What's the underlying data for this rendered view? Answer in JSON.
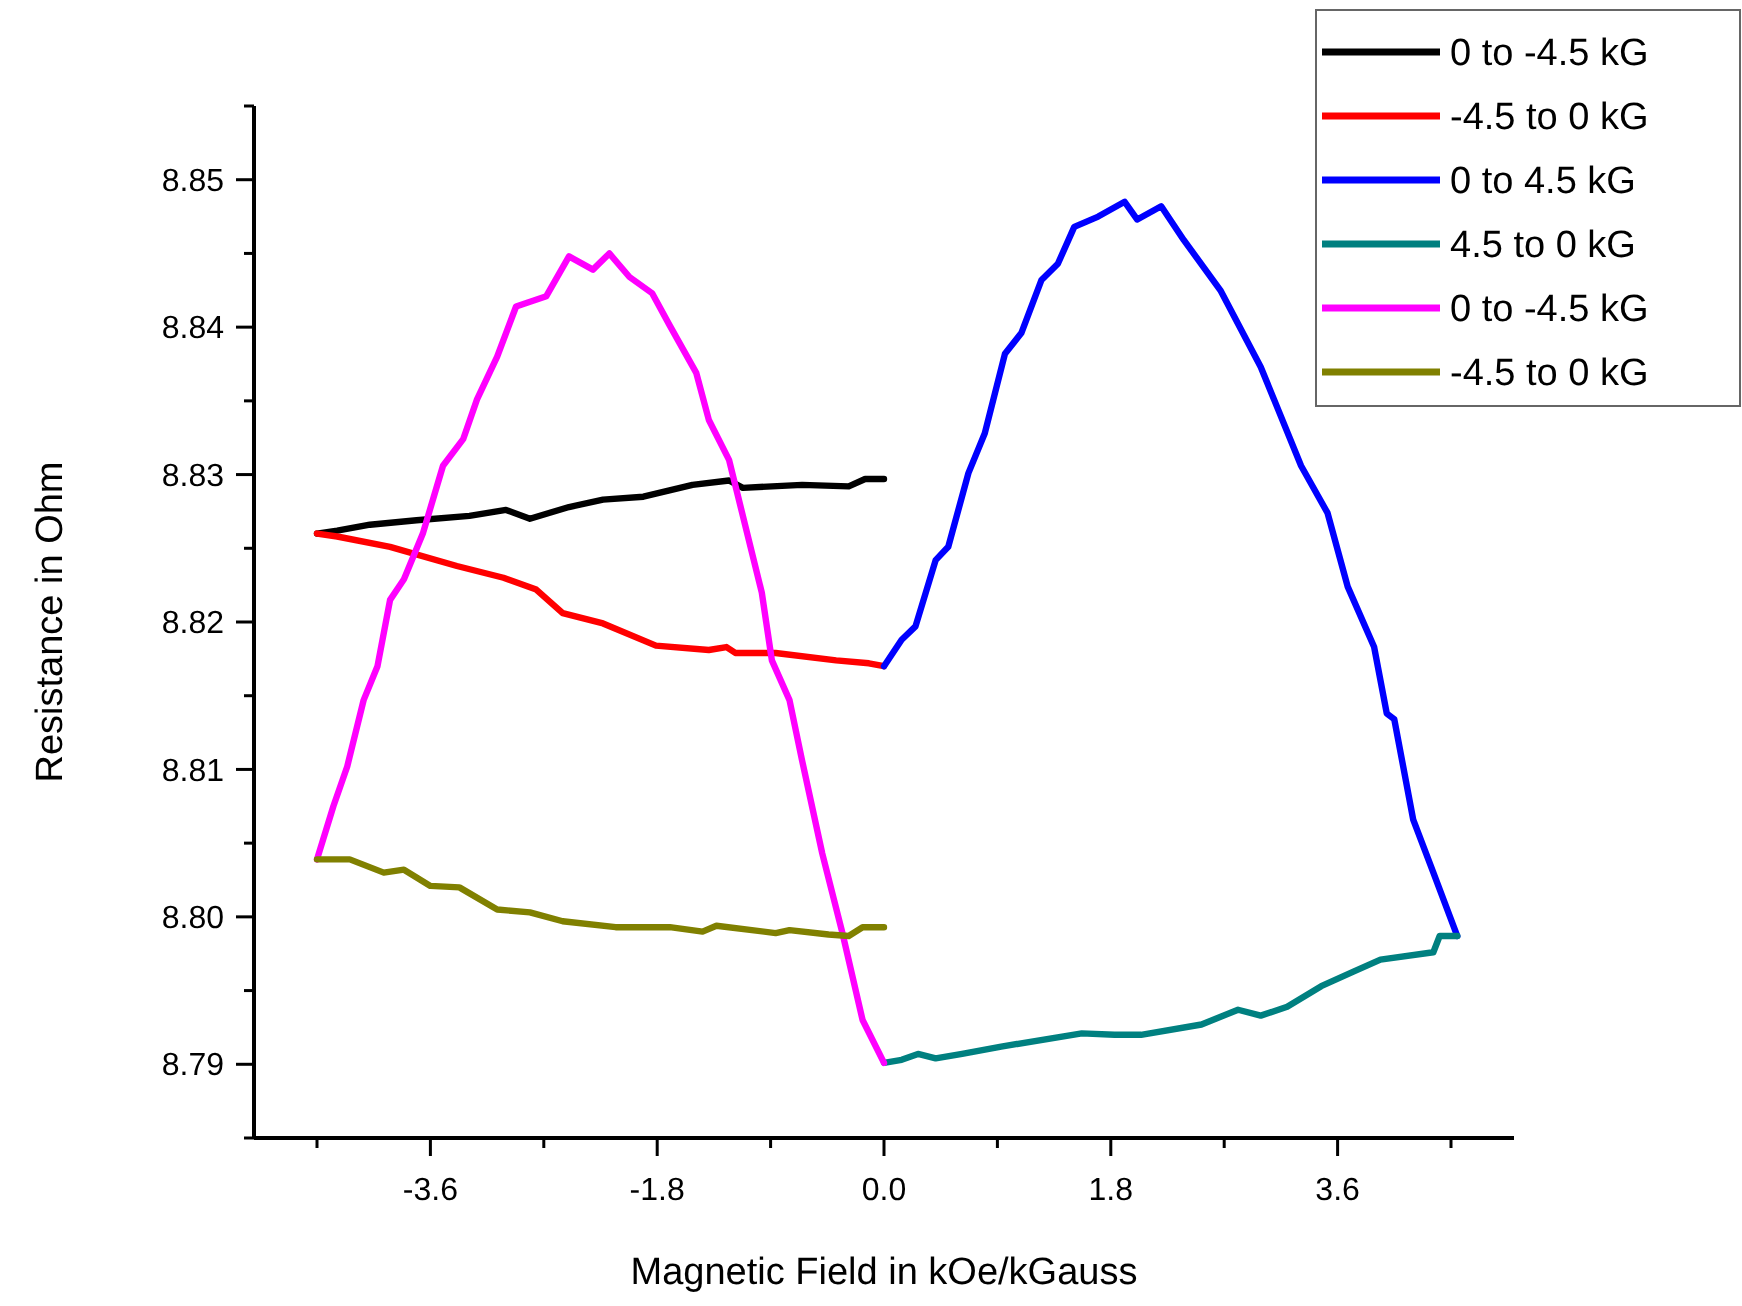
{
  "chart_data": {
    "type": "line",
    "xlabel": "Magnetic Field in kOe/kGauss",
    "ylabel": "Resistance in Ohm",
    "xlim": [
      -5,
      5
    ],
    "xticks": [
      {
        "value": -4.5,
        "label": null
      },
      -3.6,
      {
        "value": -2.7,
        "label": null
      },
      -1.8,
      {
        "value": -0.9,
        "label": null
      },
      {
        "value": 0,
        "label": "0.0"
      },
      {
        "value": 0.9,
        "label": null
      },
      1.8,
      {
        "value": 2.7,
        "label": null
      },
      3.6,
      {
        "value": 4.5,
        "label": null
      }
    ],
    "ylim": [
      8.785,
      8.855
    ],
    "yticks": [
      {
        "value": 8.785,
        "label": null
      },
      8.79,
      {
        "value": 8.795,
        "label": null
      },
      {
        "value": 8.8,
        "label": "8.80"
      },
      {
        "value": 8.805,
        "label": null
      },
      8.81,
      {
        "value": 8.815,
        "label": null
      },
      8.82,
      {
        "value": 8.825,
        "label": null
      },
      8.83,
      {
        "value": 8.835,
        "label": null
      },
      8.84,
      {
        "value": 8.845,
        "label": null
      },
      8.85,
      {
        "value": 8.855,
        "label": null
      }
    ],
    "grid": false,
    "legend": "top right",
    "line_style": "solid",
    "series": [
      {
        "name": "0 to -4.5 kG",
        "color": "#000000",
        "x": [
          -4.5,
          -4.34,
          -4.08,
          -3.71,
          -3.29,
          -3.0,
          -2.81,
          -2.5,
          -2.23,
          -1.91,
          -1.52,
          -1.23,
          -1.12,
          -0.65,
          -0.28,
          -0.15,
          0
        ],
        "values": [
          8.826,
          8.8262,
          8.8266,
          8.8269,
          8.8272,
          8.8276,
          8.827,
          8.8278,
          8.8283,
          8.8285,
          8.8293,
          8.8296,
          8.8291,
          8.8293,
          8.8292,
          8.8297,
          8.8297
        ]
      },
      {
        "name": "-4.5 to 0 kG",
        "color": "#ff0000",
        "x": [
          -4.5,
          -4.34,
          -3.92,
          -3.39,
          -3.02,
          -2.76,
          -2.55,
          -2.23,
          -1.81,
          -1.39,
          -1.25,
          -1.18,
          -0.86,
          -0.38,
          -0.12,
          0
        ],
        "values": [
          8.826,
          8.8258,
          8.8251,
          8.8238,
          8.823,
          8.8222,
          8.8206,
          8.8199,
          8.8184,
          8.8181,
          8.8183,
          8.8179,
          8.8179,
          8.8174,
          8.8172,
          8.817
        ]
      },
      {
        "name": "0 to 4.5 kG",
        "color": "#0000ff",
        "x": [
          0,
          0.14,
          0.25,
          0.41,
          0.51,
          0.67,
          0.8,
          0.96,
          1.09,
          1.25,
          1.38,
          1.51,
          1.7,
          1.91,
          2.01,
          2.2,
          2.38,
          2.67,
          2.99,
          3.31,
          3.52,
          3.68,
          3.89,
          3.99,
          4.05,
          4.2,
          4.36,
          4.55
        ],
        "values": [
          8.817,
          8.8188,
          8.8197,
          8.8242,
          8.8251,
          8.8301,
          8.8328,
          8.8382,
          8.8396,
          8.8432,
          8.8443,
          8.8468,
          8.8475,
          8.8485,
          8.8473,
          8.8482,
          8.8459,
          8.8425,
          8.8373,
          8.8306,
          8.8274,
          8.8224,
          8.8183,
          8.8138,
          8.8134,
          8.8066,
          8.803,
          8.7987
        ]
      },
      {
        "name": "4.5 to 0 kG",
        "color": "#008080",
        "x": [
          4.55,
          4.41,
          4.36,
          3.94,
          3.73,
          3.47,
          3.2,
          2.99,
          2.81,
          2.52,
          2.04,
          1.83,
          1.57,
          0.93,
          0.62,
          0.41,
          0.27,
          0.14,
          0
        ],
        "values": [
          8.7987,
          8.7987,
          8.7976,
          8.7971,
          8.7963,
          8.7953,
          8.7939,
          8.7933,
          8.7937,
          8.7927,
          8.792,
          8.792,
          8.7921,
          8.7912,
          8.7907,
          8.7904,
          8.7907,
          8.7903,
          8.7901
        ]
      },
      {
        "name": "0 to -4.5 kG",
        "color": "#ff00ff",
        "x": [
          0,
          -0.17,
          -0.33,
          -0.49,
          -0.65,
          -0.75,
          -0.89,
          -0.97,
          -1.23,
          -1.39,
          -1.49,
          -1.7,
          -1.84,
          -2.02,
          -2.18,
          -2.31,
          -2.5,
          -2.68,
          -2.92,
          -3.07,
          -3.23,
          -3.34,
          -3.5,
          -3.66,
          -3.81,
          -3.92,
          -4.02,
          -4.13,
          -4.26,
          -4.37,
          -4.5
        ],
        "values": [
          8.7901,
          8.793,
          8.7989,
          8.8043,
          8.8106,
          8.8147,
          8.8174,
          8.822,
          8.831,
          8.8337,
          8.8369,
          8.8401,
          8.8423,
          8.8434,
          8.845,
          8.8439,
          8.8448,
          8.8421,
          8.8414,
          8.838,
          8.8351,
          8.8324,
          8.8306,
          8.826,
          8.8229,
          8.8215,
          8.817,
          8.8147,
          8.8102,
          8.8075,
          8.8039
        ]
      },
      {
        "name": "-4.5 to 0 kG",
        "color": "#808000",
        "x": [
          -4.5,
          -4.24,
          -3.97,
          -3.81,
          -3.6,
          -3.37,
          -3.07,
          -2.81,
          -2.55,
          -2.13,
          -1.7,
          -1.44,
          -1.33,
          -0.86,
          -0.75,
          -0.44,
          -0.28,
          -0.17,
          0
        ],
        "values": [
          8.8039,
          8.8039,
          8.803,
          8.8032,
          8.8021,
          8.802,
          8.8005,
          8.8003,
          8.7997,
          8.7993,
          8.7993,
          8.799,
          8.7994,
          8.7989,
          8.7991,
          8.7988,
          8.7987,
          8.7993,
          8.7993
        ]
      }
    ]
  }
}
